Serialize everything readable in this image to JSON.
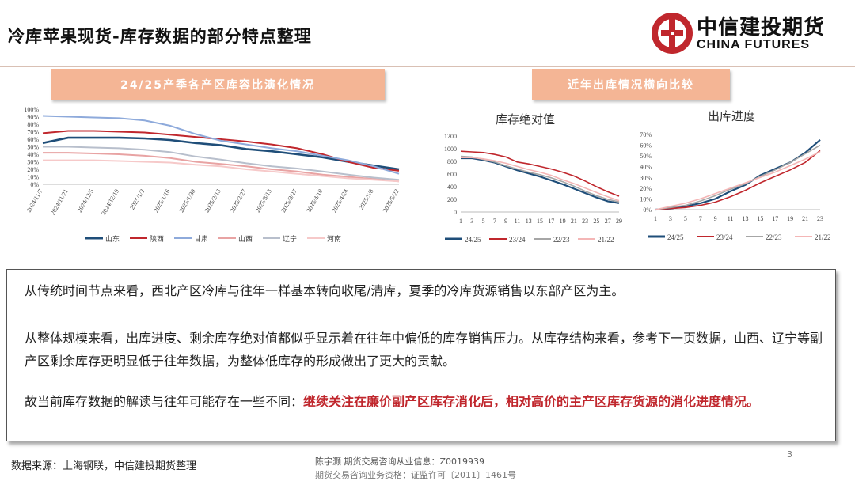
{
  "header": {
    "title": "冷库苹果现货-库存数据的部分特点整理",
    "logo_cn": "中信建投期货",
    "logo_en": "CHINA FUTURES",
    "brand_color": "#c0272d"
  },
  "left_panel": {
    "banner": "24/25产季各产区库容比演化情况",
    "chart_data": {
      "type": "line",
      "categories": [
        "2024/11/7",
        "2024/11/21",
        "2024/12/5",
        "2024/12/19",
        "2025/1/2",
        "2025/1/16",
        "2025/1/30",
        "2025/2/13",
        "2025/2/27",
        "2025/3/13",
        "2025/3/27",
        "2025/4/10",
        "2025/4/24",
        "2025/5/8",
        "2025/5/22"
      ],
      "ylim": [
        0,
        100
      ],
      "yticks": [
        "0%",
        "10%",
        "20%",
        "30%",
        "40%",
        "50%",
        "60%",
        "70%",
        "80%",
        "90%",
        "100%"
      ],
      "legend_position": "bottom",
      "series": [
        {
          "name": "山东",
          "color": "#1f4e79",
          "values": [
            55,
            62,
            62,
            62,
            61,
            59,
            55,
            52,
            47,
            44,
            40,
            36,
            30,
            25,
            20
          ]
        },
        {
          "name": "陕西",
          "color": "#c0272d",
          "values": [
            68,
            71,
            71,
            70,
            69,
            66,
            63,
            60,
            57,
            53,
            48,
            40,
            30,
            22,
            18
          ]
        },
        {
          "name": "甘肃",
          "color": "#8eaadb",
          "values": [
            91,
            90,
            89,
            88,
            85,
            78,
            67,
            58,
            53,
            48,
            44,
            38,
            32,
            24,
            14
          ]
        },
        {
          "name": "山西",
          "color": "#e8a3a3",
          "values": [
            42,
            42,
            41,
            40,
            38,
            35,
            30,
            27,
            24,
            20,
            17,
            13,
            10,
            7,
            4
          ]
        },
        {
          "name": "辽宁",
          "color": "#b8bfcc",
          "values": [
            50,
            50,
            49,
            48,
            46,
            43,
            37,
            33,
            28,
            24,
            21,
            17,
            13,
            9,
            6
          ]
        },
        {
          "name": "河南",
          "color": "#f6c9c9",
          "values": [
            32,
            32,
            32,
            31,
            30,
            29,
            26,
            24,
            20,
            17,
            14,
            11,
            8,
            6,
            4
          ]
        }
      ]
    }
  },
  "right_panel": {
    "banner": "近年出库情况横向比较",
    "chart_data": [
      {
        "type": "line",
        "title": "库存绝对值",
        "categories": [
          "1",
          "3",
          "5",
          "7",
          "9",
          "11",
          "13",
          "15",
          "17",
          "19",
          "21",
          "23",
          "25",
          "27",
          "29"
        ],
        "ylim": [
          0,
          1200
        ],
        "yticks": [
          "0",
          "200",
          "400",
          "600",
          "800",
          "1000",
          "1200"
        ],
        "legend_position": "bottom",
        "series": [
          {
            "name": "24/25",
            "color": "#1f4e79",
            "values": [
              850,
              850,
              820,
              780,
              720,
              660,
              610,
              560,
              500,
              440,
              370,
              300,
              230,
              170,
              140
            ]
          },
          {
            "name": "23/24",
            "color": "#c0272d",
            "values": [
              960,
              950,
              940,
              910,
              870,
              790,
              760,
              720,
              680,
              630,
              570,
              490,
              400,
              320,
              250
            ]
          },
          {
            "name": "22/23",
            "color": "#a6a6a6",
            "values": [
              880,
              870,
              830,
              790,
              730,
              680,
              630,
              590,
              540,
              480,
              410,
              330,
              260,
              200,
              160
            ]
          },
          {
            "name": "21/22",
            "color": "#f4b6b6",
            "values": [
              860,
              860,
              840,
              810,
              770,
              720,
              670,
              630,
              580,
              510,
              450,
              380,
              310,
              240,
              180
            ]
          }
        ]
      },
      {
        "type": "line",
        "title": "出库进度",
        "categories": [
          "1",
          "3",
          "5",
          "7",
          "9",
          "11",
          "13",
          "15",
          "17",
          "19",
          "21",
          "23"
        ],
        "ylim": [
          0,
          70
        ],
        "yticks": [
          "0%",
          "10%",
          "20%",
          "30%",
          "40%",
          "50%",
          "60%",
          "70%"
        ],
        "legend_position": "bottom",
        "series": [
          {
            "name": "24/25",
            "color": "#1f4e79",
            "values": [
              0,
              1,
              3,
              6,
              10,
              17,
              23,
              32,
              38,
              44,
              53,
              65
            ]
          },
          {
            "name": "23/24",
            "color": "#c0272d",
            "values": [
              0,
              1,
              2,
              4,
              7,
              12,
              18,
              25,
              31,
              37,
              44,
              55
            ]
          },
          {
            "name": "22/23",
            "color": "#a6a6a6",
            "values": [
              0,
              2,
              4,
              8,
              13,
              19,
              24,
              31,
              37,
              44,
              52,
              60
            ]
          },
          {
            "name": "21/22",
            "color": "#f4b6b6",
            "values": [
              0,
              3,
              6,
              10,
              15,
              20,
              25,
              30,
              35,
              41,
              47,
              54
            ]
          }
        ]
      }
    ]
  },
  "text_box": {
    "p1": "从传统时间节点来看，西北产区冷库与往年一样基本转向收尾/清库，夏季的冷库货源销售以东部产区为主。",
    "p2": "从整体规模来看，出库进度、剩余库存绝对值都似乎显示着在往年中偏低的库存销售压力。从库存结构来看，参考下一页数据，山西、辽宁等副产区剩余库存更明显低于往年数据，为整体低库存的形成做出了更大的贡献。",
    "p3_normal": "故当前库存数据的解读与往年可能存在一些不同：",
    "p3_red": "继续关注在廉价副产区库存消化后，相对高价的主产区库存货源的消化进度情况。"
  },
  "footer": {
    "source": "数据来源：上海钢联，中信建投期货整理",
    "line1": "陈宇灏 期货交易咨询从业信息：Z0019939",
    "line2": "期货交易咨询业务资格：证监许可〔2011〕1461号",
    "page": "3"
  }
}
